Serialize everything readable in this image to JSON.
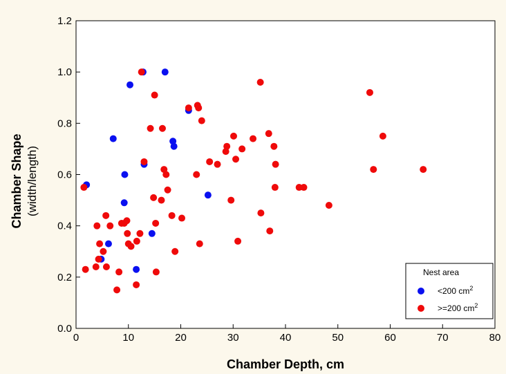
{
  "chart_data": {
    "type": "scatter",
    "xlabel": "Chamber Depth, cm",
    "ylabel": "Chamber Shape",
    "ylabel_sub": "(width/length)",
    "xlim": [
      0,
      80
    ],
    "ylim": [
      0.0,
      1.2
    ],
    "x_ticks": [
      "0",
      "10",
      "20",
      "30",
      "40",
      "50",
      "60",
      "70",
      "80"
    ],
    "y_ticks": [
      "0.0",
      "0.2",
      "0.4",
      "0.6",
      "0.8",
      "1.0",
      "1.2"
    ],
    "grid": false,
    "legend": {
      "title": "Nest area",
      "placement": "bottom-right",
      "entries": [
        {
          "label": "<200 cm",
          "sup": "2",
          "color": "#0a10f0"
        },
        {
          "label": ">=200 cm",
          "sup": "2",
          "color": "#ef0a0a"
        }
      ]
    },
    "series": [
      {
        "name": "<200 cm2",
        "color": "#0a10f0",
        "points": [
          [
            2.0,
            0.56
          ],
          [
            4.8,
            0.27
          ],
          [
            6.2,
            0.33
          ],
          [
            7.1,
            0.74
          ],
          [
            9.2,
            0.49
          ],
          [
            9.3,
            0.6
          ],
          [
            10.3,
            0.95
          ],
          [
            11.5,
            0.23
          ],
          [
            12.8,
            1.0
          ],
          [
            13.0,
            0.64
          ],
          [
            14.5,
            0.37
          ],
          [
            17.0,
            1.0
          ],
          [
            18.5,
            0.73
          ],
          [
            18.7,
            0.71
          ],
          [
            21.5,
            0.85
          ],
          [
            25.2,
            0.52
          ]
        ]
      },
      {
        "name": ">=200 cm2",
        "color": "#ef0a0a",
        "points": [
          [
            1.5,
            0.55
          ],
          [
            1.8,
            0.23
          ],
          [
            3.8,
            0.24
          ],
          [
            4.0,
            0.4
          ],
          [
            4.3,
            0.27
          ],
          [
            4.5,
            0.33
          ],
          [
            5.2,
            0.3
          ],
          [
            5.7,
            0.44
          ],
          [
            5.8,
            0.24
          ],
          [
            6.5,
            0.4
          ],
          [
            7.8,
            0.15
          ],
          [
            8.2,
            0.22
          ],
          [
            8.7,
            0.41
          ],
          [
            9.2,
            0.41
          ],
          [
            9.7,
            0.42
          ],
          [
            9.8,
            0.37
          ],
          [
            10.0,
            0.33
          ],
          [
            10.5,
            0.32
          ],
          [
            11.5,
            0.17
          ],
          [
            11.6,
            0.34
          ],
          [
            12.2,
            0.37
          ],
          [
            12.5,
            1.0
          ],
          [
            13.0,
            0.65
          ],
          [
            14.2,
            0.78
          ],
          [
            14.8,
            0.51
          ],
          [
            15.0,
            0.91
          ],
          [
            15.2,
            0.41
          ],
          [
            15.3,
            0.22
          ],
          [
            16.3,
            0.5
          ],
          [
            16.5,
            0.78
          ],
          [
            16.8,
            0.62
          ],
          [
            17.2,
            0.6
          ],
          [
            17.5,
            0.54
          ],
          [
            18.3,
            0.44
          ],
          [
            18.9,
            0.3
          ],
          [
            20.2,
            0.43
          ],
          [
            21.5,
            0.86
          ],
          [
            23.0,
            0.6
          ],
          [
            23.2,
            0.87
          ],
          [
            23.4,
            0.86
          ],
          [
            23.6,
            0.33
          ],
          [
            24.0,
            0.81
          ],
          [
            25.5,
            0.65
          ],
          [
            27.0,
            0.64
          ],
          [
            28.6,
            0.69
          ],
          [
            28.8,
            0.71
          ],
          [
            29.6,
            0.5
          ],
          [
            30.1,
            0.75
          ],
          [
            30.5,
            0.66
          ],
          [
            30.9,
            0.34
          ],
          [
            31.7,
            0.7
          ],
          [
            33.8,
            0.74
          ],
          [
            35.2,
            0.96
          ],
          [
            35.3,
            0.45
          ],
          [
            36.8,
            0.76
          ],
          [
            37.0,
            0.38
          ],
          [
            37.8,
            0.71
          ],
          [
            38.0,
            0.55
          ],
          [
            38.1,
            0.64
          ],
          [
            42.6,
            0.55
          ],
          [
            43.5,
            0.55
          ],
          [
            48.3,
            0.48
          ],
          [
            56.1,
            0.92
          ],
          [
            56.8,
            0.62
          ],
          [
            58.6,
            0.75
          ],
          [
            66.3,
            0.62
          ]
        ]
      }
    ]
  }
}
